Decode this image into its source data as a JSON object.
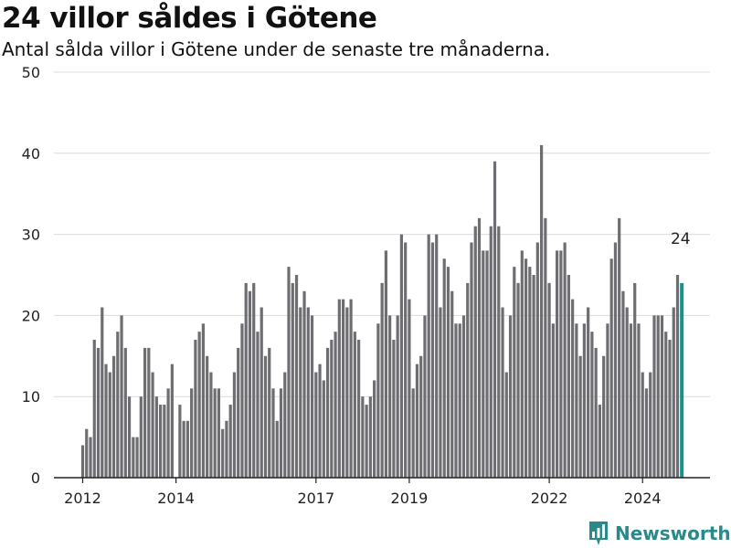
{
  "header": {
    "title": "24 villor såldes i Götene",
    "subtitle": "Antal sålda villor i Götene under de senaste tre månaderna."
  },
  "brand": {
    "name": "Newsworthy",
    "icon": "bar-chart-logo-icon",
    "color": "#2a8a8a"
  },
  "colors": {
    "bar": "#6e6d71",
    "highlight": "#1a9189",
    "grid": "#dcdcdc",
    "axis": "#222222"
  },
  "chart_data": {
    "type": "bar",
    "title": "24 villor såldes i Götene",
    "subtitle": "Antal sålda villor i Götene under de senaste tre månaderna.",
    "xlabel": "",
    "ylabel": "",
    "ylim": [
      0,
      50
    ],
    "yticks": [
      0,
      10,
      20,
      30,
      40,
      50
    ],
    "xtick_labels": [
      "2012",
      "2014",
      "2017",
      "2019",
      "2022",
      "2024"
    ],
    "xtick_positions": [
      "2012-01",
      "2014-01",
      "2017-01",
      "2019-01",
      "2022-01",
      "2024-01"
    ],
    "grid": true,
    "start_month": "2012-01",
    "highlight_last": true,
    "last_value_label": "24",
    "values": [
      4,
      6,
      5,
      17,
      16,
      21,
      14,
      13,
      15,
      18,
      20,
      16,
      10,
      5,
      5,
      10,
      16,
      16,
      13,
      10,
      9,
      9,
      11,
      14,
      0,
      9,
      7,
      7,
      11,
      17,
      18,
      19,
      15,
      13,
      11,
      11,
      6,
      7,
      9,
      13,
      16,
      19,
      24,
      23,
      24,
      18,
      21,
      15,
      16,
      11,
      7,
      11,
      13,
      26,
      24,
      25,
      21,
      23,
      21,
      20,
      13,
      14,
      12,
      16,
      17,
      18,
      22,
      22,
      21,
      22,
      18,
      17,
      10,
      9,
      10,
      12,
      19,
      24,
      28,
      20,
      17,
      20,
      30,
      29,
      22,
      11,
      14,
      15,
      20,
      30,
      29,
      30,
      21,
      27,
      26,
      23,
      19,
      19,
      20,
      24,
      29,
      31,
      32,
      28,
      28,
      31,
      39,
      31,
      21,
      13,
      20,
      26,
      24,
      28,
      27,
      26,
      25,
      29,
      41,
      32,
      24,
      19,
      28,
      28,
      29,
      25,
      22,
      19,
      15,
      19,
      21,
      18,
      16,
      9,
      15,
      19,
      27,
      29,
      32,
      23,
      21,
      19,
      24,
      19,
      13,
      11,
      13,
      20,
      20,
      20,
      18,
      17,
      21,
      25,
      24
    ]
  }
}
